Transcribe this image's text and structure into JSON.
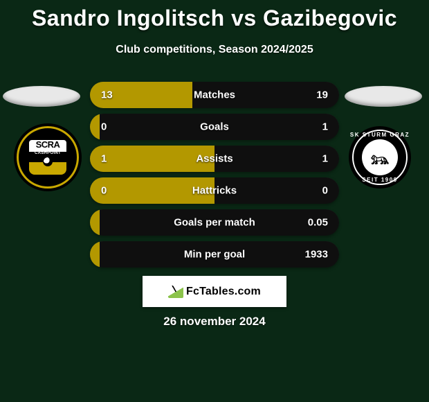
{
  "title": "Sandro Ingolitsch vs Gazibegovic",
  "subtitle": "Club competitions, Season 2024/2025",
  "date": "26 november 2024",
  "watermark": "FcTables.com",
  "colors": {
    "left": "#b39800",
    "right": "#0f0f0f",
    "background": "#0a2815"
  },
  "teams": {
    "left": {
      "badge_line1": "SCRA",
      "badge_line2": "CASHPOINT"
    },
    "right": {
      "arc_top": "SK STURM GRAZ",
      "arc_bottom": "SEIT 1909"
    }
  },
  "bars": [
    {
      "label": "Matches",
      "left_val": "13",
      "right_val": "19",
      "left_pct": 41,
      "right_pct": 59
    },
    {
      "label": "Goals",
      "left_val": "0",
      "right_val": "1",
      "left_pct": 4,
      "right_pct": 96
    },
    {
      "label": "Assists",
      "left_val": "1",
      "right_val": "1",
      "left_pct": 50,
      "right_pct": 50
    },
    {
      "label": "Hattricks",
      "left_val": "0",
      "right_val": "0",
      "left_pct": 50,
      "right_pct": 50
    },
    {
      "label": "Goals per match",
      "left_val": "",
      "right_val": "0.05",
      "left_pct": 4,
      "right_pct": 96
    },
    {
      "label": "Min per goal",
      "left_val": "",
      "right_val": "1933",
      "left_pct": 4,
      "right_pct": 96
    }
  ]
}
